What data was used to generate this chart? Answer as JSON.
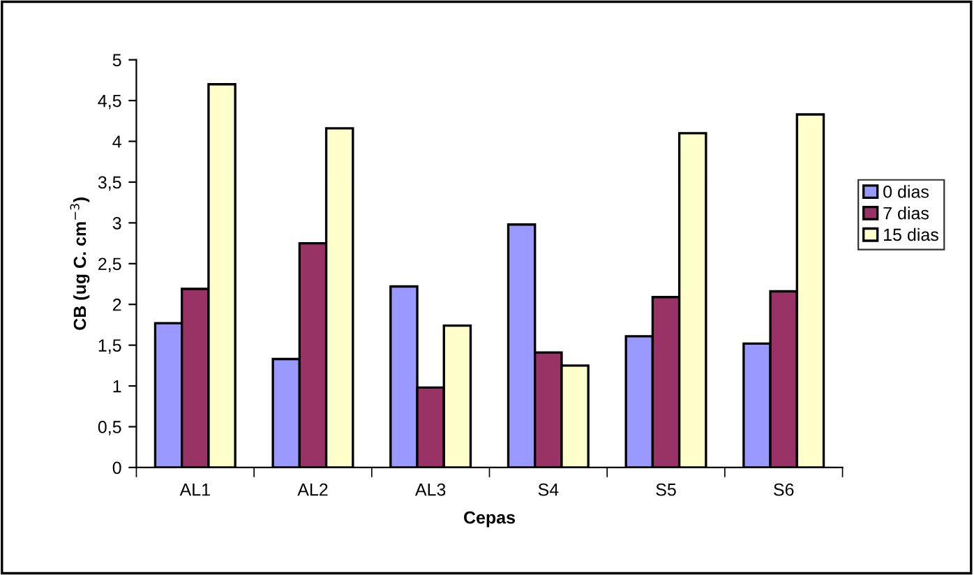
{
  "chart_data": {
    "type": "bar",
    "xlabel": "Cepas",
    "ylabel": "CB (ug C. cm$^{−3}$)",
    "categories": [
      "AL1",
      "AL2",
      "AL3",
      "S4",
      "S5",
      "S6"
    ],
    "series": [
      {
        "name": "0 dias",
        "color": "#9999ff",
        "values": [
          1.77,
          1.33,
          2.22,
          2.98,
          1.61,
          1.52
        ]
      },
      {
        "name": "7 dias",
        "color": "#993366",
        "values": [
          2.19,
          2.75,
          0.98,
          1.41,
          2.09,
          2.16
        ]
      },
      {
        "name": "15 dias",
        "color": "#ffffcc",
        "values": [
          4.7,
          4.16,
          1.74,
          1.25,
          4.1,
          4.33
        ]
      }
    ],
    "ylim": [
      0,
      5
    ],
    "yticks": [
      0,
      {
        "value": 0.5,
        "label": "0,5"
      },
      1,
      {
        "value": 1.5,
        "label": "1,5"
      },
      2,
      {
        "value": 2.5,
        "label": "2,5"
      },
      3,
      {
        "value": 3.5,
        "label": "3,5"
      },
      4,
      {
        "value": 4.5,
        "label": "4,5"
      },
      5
    ],
    "grid": false,
    "legend": "right"
  }
}
